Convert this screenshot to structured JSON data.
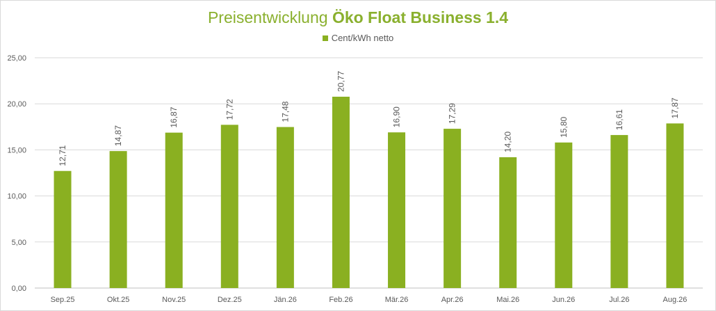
{
  "chart_data": {
    "type": "bar",
    "title_prefix": "Preisentwicklung ",
    "title_bold": "Öko Float Business 1.4",
    "legend": [
      "Cent/kWh netto"
    ],
    "categories": [
      "Sep.25",
      "Okt.25",
      "Nov.25",
      "Dez.25",
      "Jän.26",
      "Feb.26",
      "Mär.26",
      "Apr.26",
      "Mai.26",
      "Jun.26",
      "Jul.26",
      "Aug.26"
    ],
    "series": [
      {
        "name": "Cent/kWh netto",
        "values": [
          12.71,
          14.87,
          16.87,
          17.72,
          17.48,
          20.77,
          16.9,
          17.29,
          14.2,
          15.8,
          16.61,
          17.87
        ],
        "labels": [
          "12,71",
          "14,87",
          "16,87",
          "17,72",
          "17,48",
          "20,77",
          "16,90",
          "17,29",
          "14,20",
          "15,80",
          "16,61",
          "17,87"
        ]
      }
    ],
    "yticks": [
      "0,00",
      "5,00",
      "10,00",
      "15,00",
      "20,00",
      "25,00"
    ],
    "ylim": [
      0,
      25
    ],
    "grid": true,
    "legend_position": "top",
    "bar_color": "#8ab021",
    "title_color": "#8ab02e"
  }
}
